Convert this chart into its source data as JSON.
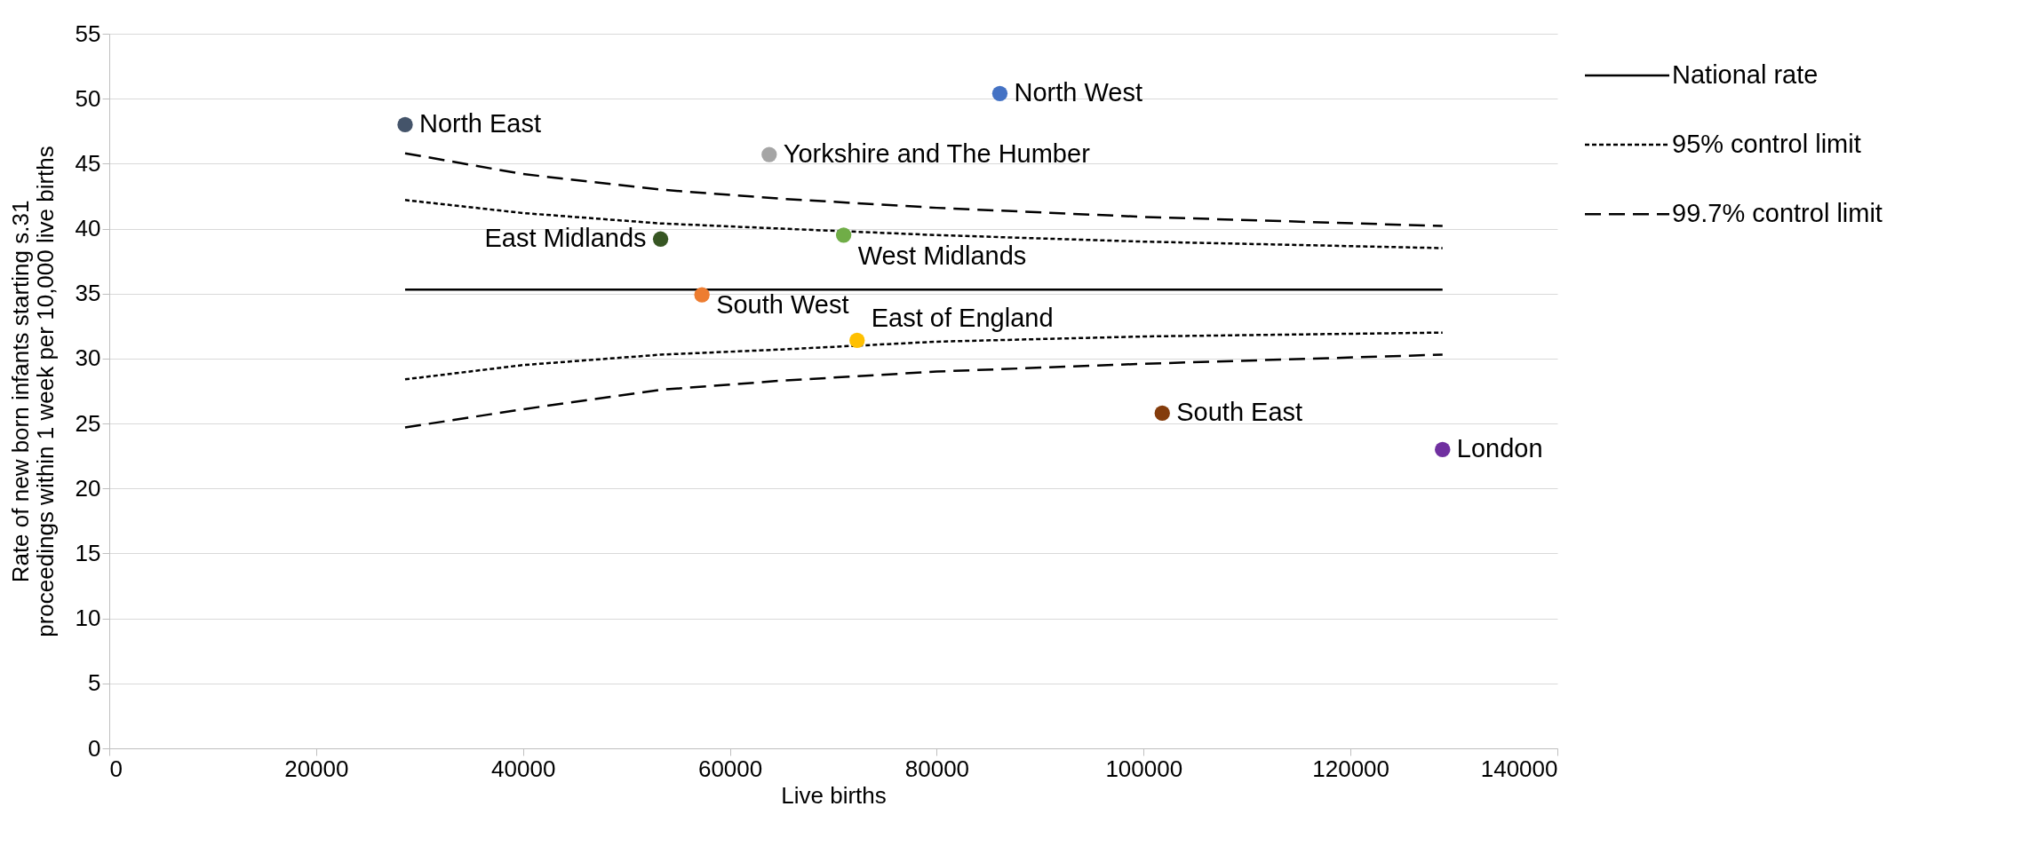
{
  "chart_data": {
    "type": "scatter",
    "xlabel": "Live births",
    "ylabel": "Rate of new born infants starting s.31\nproceedings within 1 week per 10,000 live births",
    "xlim": [
      0,
      140000
    ],
    "xticks": [
      0,
      20000,
      40000,
      60000,
      80000,
      100000,
      120000,
      140000
    ],
    "ylim": [
      0,
      55
    ],
    "yticks": [
      0,
      5,
      10,
      15,
      20,
      25,
      30,
      35,
      40,
      45,
      50,
      55
    ],
    "grid": "y",
    "legend": "top right",
    "marker": "circle",
    "series": [
      {
        "name": "North East",
        "color": "#44546a",
        "x": [
          28600
        ],
        "values": [
          48.0
        ]
      },
      {
        "name": "Yorkshire and The Humber",
        "color": "#a5a5a5",
        "x": [
          63800
        ],
        "values": [
          45.7
        ]
      },
      {
        "name": "North West",
        "color": "#4472c4",
        "x": [
          86100
        ],
        "values": [
          50.4
        ]
      },
      {
        "name": "East Midlands",
        "color": "#375623",
        "x": [
          53300
        ],
        "values": [
          39.2
        ]
      },
      {
        "name": "West Midlands",
        "color": "#70ad47",
        "x": [
          71000
        ],
        "values": [
          39.5
        ]
      },
      {
        "name": "South West",
        "color": "#ed7d31",
        "x": [
          57300
        ],
        "values": [
          34.9
        ]
      },
      {
        "name": "East of England",
        "color": "#ffc000",
        "x": [
          72300
        ],
        "values": [
          31.4
        ]
      },
      {
        "name": "South East",
        "color": "#843c0c",
        "x": [
          101800
        ],
        "values": [
          25.8
        ]
      },
      {
        "name": "London",
        "color": "#7030a0",
        "x": [
          128900
        ],
        "values": [
          23.0
        ]
      },
      {
        "name": "National rate",
        "type": "line",
        "marker": "none",
        "line_style": "solid",
        "color": "#000000",
        "x": [
          28600,
          128900
        ],
        "values": [
          35.3,
          35.3
        ]
      },
      {
        "name": "95% control limit",
        "type": "line",
        "marker": "none",
        "line_style": "dotted",
        "color": "#000000",
        "x": [
          28600,
          40000,
          53300,
          65000,
          80000,
          100000,
          128900
        ],
        "values": [
          42.2,
          41.2,
          40.4,
          40.0,
          39.5,
          39.0,
          38.5
        ]
      },
      {
        "type": "line",
        "marker": "none",
        "line_style": "dotted",
        "color": "#000000",
        "x": [
          28600,
          40000,
          53300,
          65000,
          80000,
          100000,
          128900
        ],
        "values": [
          28.4,
          29.5,
          30.3,
          30.7,
          31.3,
          31.7,
          32.0
        ]
      },
      {
        "name": "99.7% control limit",
        "type": "line",
        "marker": "none",
        "line_style": "dashed",
        "color": "#000000",
        "x": [
          28600,
          40000,
          53300,
          65000,
          80000,
          100000,
          128900
        ],
        "values": [
          45.8,
          44.2,
          43.0,
          42.3,
          41.6,
          40.9,
          40.2
        ]
      },
      {
        "type": "line",
        "marker": "none",
        "line_style": "dashed",
        "color": "#000000",
        "x": [
          28600,
          40000,
          53300,
          65000,
          80000,
          100000,
          128900
        ],
        "values": [
          24.7,
          26.1,
          27.6,
          28.3,
          29.0,
          29.6,
          30.3
        ]
      }
    ]
  }
}
